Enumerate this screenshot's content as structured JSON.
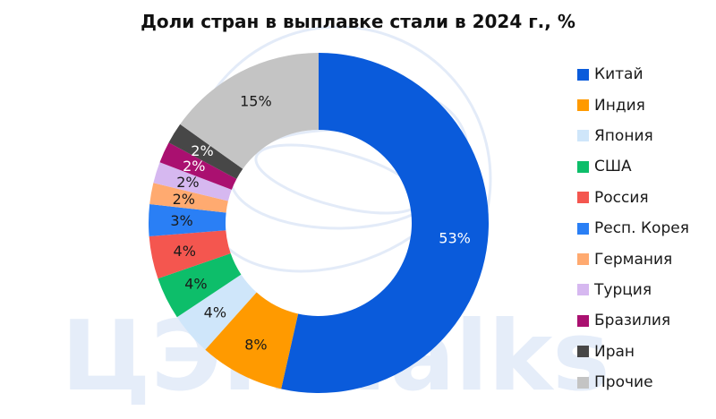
{
  "title": "Доли стран в выплавке стали в 2024 г., %",
  "watermark_text": "ЦЭП Talks",
  "chart_data": {
    "type": "pie",
    "subtype": "donut",
    "title": "Доли стран в выплавке стали в 2024 г., %",
    "legend_position": "right",
    "slices": [
      {
        "name": "Китай",
        "value": 53,
        "label": "53%",
        "color": "#0A5BDB",
        "label_color": "#ffffff"
      },
      {
        "name": "Индия",
        "value": 8,
        "label": "8%",
        "color": "#FF9A00",
        "label_color": "#1a1a1a"
      },
      {
        "name": "Япония",
        "value": 4,
        "label": "4%",
        "color": "#CFE6FA",
        "label_color": "#1a1a1a"
      },
      {
        "name": "США",
        "value": 4,
        "label": "4%",
        "color": "#0DBE6A",
        "label_color": "#1a1a1a"
      },
      {
        "name": "Россия",
        "value": 4,
        "label": "4%",
        "color": "#F4564F",
        "label_color": "#1a1a1a"
      },
      {
        "name": "Респ. Корея",
        "value": 3,
        "label": "3%",
        "color": "#2A7FF5",
        "label_color": "#1a1a1a"
      },
      {
        "name": "Германия",
        "value": 2,
        "label": "2%",
        "color": "#FFAA70",
        "label_color": "#1a1a1a"
      },
      {
        "name": "Турция",
        "value": 2,
        "label": "2%",
        "color": "#D6B8F0",
        "label_color": "#1a1a1a"
      },
      {
        "name": "Бразилия",
        "value": 2,
        "label": "2%",
        "color": "#AA1070",
        "label_color": "#ffffff"
      },
      {
        "name": "Иран",
        "value": 2,
        "label": "2%",
        "color": "#474747",
        "label_color": "#ffffff"
      },
      {
        "name": "Прочие",
        "value": 15,
        "label": "15%",
        "color": "#C4C4C4",
        "label_color": "#1a1a1a"
      }
    ]
  }
}
